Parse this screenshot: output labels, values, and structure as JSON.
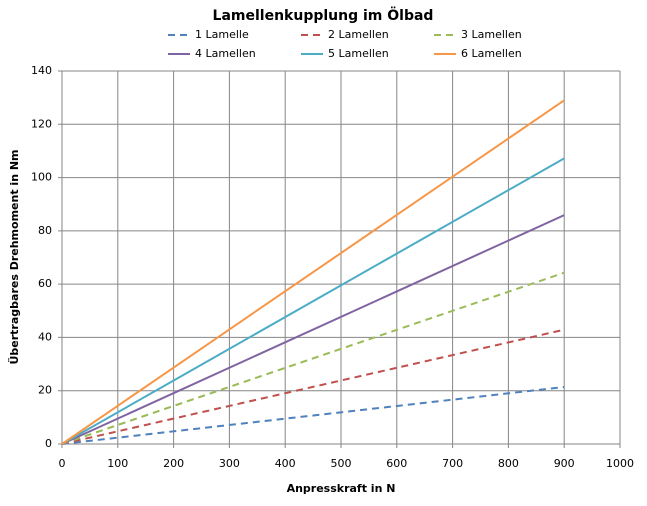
{
  "chart_data": {
    "type": "line",
    "title": "Lamellenkupplung im Ölbad",
    "x_label": "Anpresskraft in N",
    "y_label": "Übertragbares Drehmoment in Nm",
    "x": [
      0,
      900
    ],
    "series": [
      {
        "name": "1 Lamelle",
        "color": "#4f81bd",
        "linestyle": "dashed",
        "values": [
          0,
          21.4
        ]
      },
      {
        "name": "2 Lamellen",
        "color": "#c0504d",
        "linestyle": "dashed",
        "values": [
          0,
          42.9
        ]
      },
      {
        "name": "3 Lamellen",
        "color": "#9bbb59",
        "linestyle": "dashed",
        "values": [
          0,
          64.3
        ]
      },
      {
        "name": "4 Lamellen",
        "color": "#8064a2",
        "linestyle": "solid",
        "values": [
          0,
          85.9
        ]
      },
      {
        "name": "5 Lamellen",
        "color": "#4bacc6",
        "linestyle": "solid",
        "values": [
          0,
          107.2
        ]
      },
      {
        "name": "6 Lamellen",
        "color": "#f79646",
        "linestyle": "solid",
        "values": [
          0,
          129
        ]
      }
    ],
    "xlim": [
      0,
      1000
    ],
    "xticks": [
      0,
      100,
      200,
      300,
      400,
      500,
      600,
      700,
      800,
      900,
      1000
    ],
    "ylim": [
      0,
      140
    ],
    "yticks": [
      0,
      20,
      40,
      60,
      80,
      100,
      120,
      140
    ],
    "grid": true,
    "legend": "top"
  }
}
